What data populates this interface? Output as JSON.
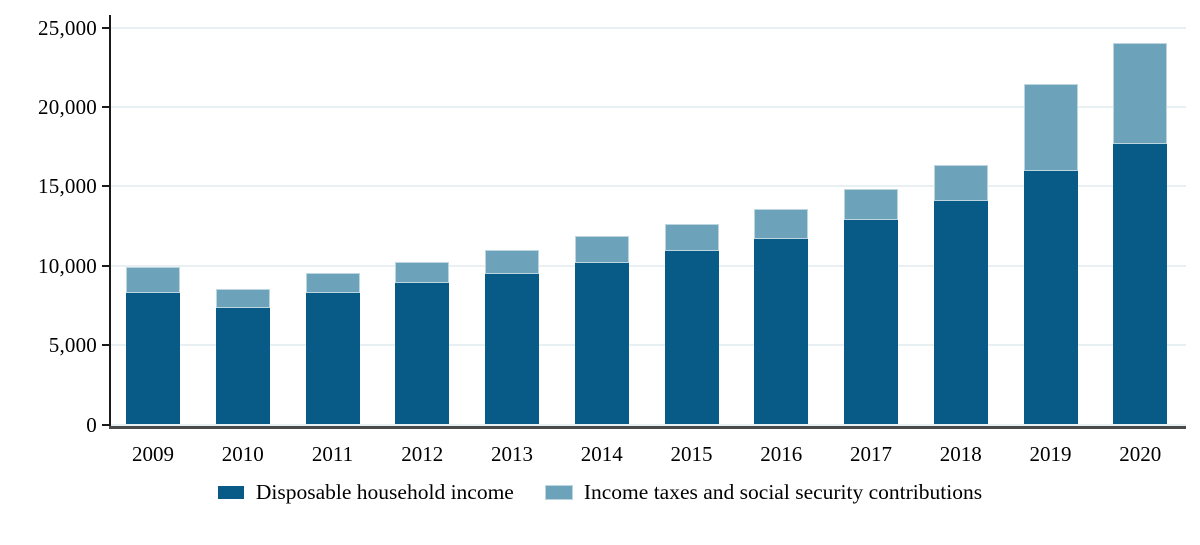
{
  "figure": {
    "background": "#ffffff"
  },
  "chart_data": {
    "type": "bar",
    "stacked": true,
    "title": "",
    "xlabel": "",
    "ylabel": "",
    "categories": [
      "2009",
      "2010",
      "2011",
      "2012",
      "2013",
      "2014",
      "2015",
      "2016",
      "2017",
      "2018",
      "2019",
      "2020"
    ],
    "series": [
      {
        "name": "Disposable household income",
        "color": "#075b86",
        "values": [
          8300,
          7350,
          8250,
          8900,
          9450,
          10200,
          10900,
          11650,
          12900,
          14050,
          15950,
          17650
        ]
      },
      {
        "name": "Income taxes and social security contributions",
        "color": "#6ca3bb",
        "values": [
          1600,
          1200,
          1300,
          1350,
          1550,
          1700,
          1750,
          1900,
          1950,
          2300,
          5500,
          6350
        ]
      }
    ],
    "totals": [
      9900,
      8550,
      9550,
      10250,
      11000,
      11900,
      12650,
      13550,
      14850,
      16350,
      21450,
      24000
    ],
    "ylim": [
      0,
      25000
    ],
    "ytick_values": [
      0,
      5000,
      10000,
      15000,
      20000,
      25000
    ],
    "ytick_labels": [
      "0",
      "5,000",
      "10,000",
      "15,000",
      "20,000",
      "25,000"
    ],
    "grid": true,
    "legend_position": "bottom",
    "colors": {
      "gridline": "#e8f0f4",
      "y_axis_line": "#1a1a1a",
      "baseline": "#4b4b4b",
      "text": "#000000",
      "light_bar_outline": "#bdd5df"
    }
  }
}
